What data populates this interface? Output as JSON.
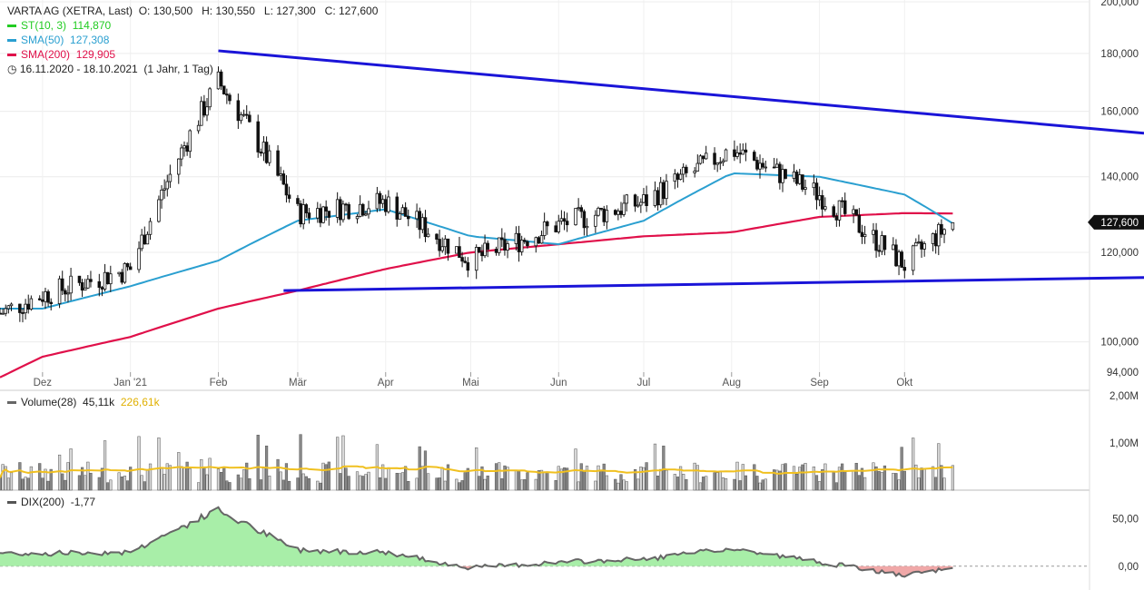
{
  "header": {
    "instrument": "VARTA AG (XETRA, Last)",
    "ohlc": {
      "o_label": "O:",
      "o": "130,500",
      "h_label": "H:",
      "h": "130,550",
      "l_label": "L:",
      "l": "127,300",
      "c_label": "C:",
      "c": "127,600"
    },
    "indicators": [
      {
        "label": "ST(10, 3)",
        "value": "114,870",
        "color": "#22cc22"
      },
      {
        "label": "SMA(50)",
        "value": "127,308",
        "color": "#2a9fd0"
      },
      {
        "label": "SMA(200)",
        "value": "129,905",
        "color": "#e0104a"
      }
    ],
    "range": "16.11.2020 - 18.10.2021",
    "range_detail": "(1 Jahr, 1 Tag)",
    "clock_icon": "clock-icon"
  },
  "price_axis": {
    "ticks": [
      "200,000",
      "180,000",
      "160,000",
      "140,000",
      "120,000",
      "100,000",
      "94,000"
    ],
    "last_price": "127,600"
  },
  "months": [
    "Dez",
    "Jan '21",
    "Feb",
    "Mär",
    "Apr",
    "Mai",
    "Jun",
    "Jul",
    "Aug",
    "Sep",
    "Okt"
  ],
  "volume": {
    "label": "Volume(28)",
    "value": "45,11k",
    "ma_value": "226,61k",
    "ma_color": "#f0c020",
    "ticks": [
      "2,00M",
      "1,00M"
    ]
  },
  "dix": {
    "label": "DIX(200)",
    "value": "-1,77",
    "ticks": [
      "50,00",
      "0,00"
    ]
  },
  "colors": {
    "trendline": "#1a14d8",
    "up_fill": "#a8eea8",
    "down_fill": "#f0a8a8",
    "candle": "#111111"
  },
  "chart_data": {
    "type": "candlestick",
    "title": "VARTA AG (XETRA, Last)",
    "dates": [
      "2020-11-16",
      "2020-12-01",
      "2021-01-01",
      "2021-02-01",
      "2021-03-01",
      "2021-04-01",
      "2021-05-01",
      "2021-06-01",
      "2021-07-01",
      "2021-08-01",
      "2021-09-01",
      "2021-10-01",
      "2021-10-18"
    ],
    "price_anchor_closes": [
      106,
      110,
      116,
      170,
      130,
      133,
      118,
      127,
      133,
      148,
      135,
      117,
      127.6
    ],
    "sma50_anchor": [
      107,
      107,
      112,
      118,
      128,
      131,
      124,
      122,
      128,
      141,
      140,
      135,
      127.3
    ],
    "sma200_anchor": [
      93,
      97,
      101,
      107,
      111,
      116,
      120,
      122,
      124,
      125,
      129,
      130,
      129.9
    ],
    "trendlines": [
      {
        "from": [
          "2021-02-01",
          181
        ],
        "to": [
          "2021-10-31",
          156
        ]
      },
      {
        "from": [
          "2021-02-24",
          111
        ],
        "to": [
          "2021-10-31",
          114
        ]
      }
    ],
    "ylim": [
      94,
      200
    ],
    "y_scale": "log",
    "volume_max": 2000000,
    "dix_range": [
      -25,
      80
    ],
    "grid": true
  }
}
